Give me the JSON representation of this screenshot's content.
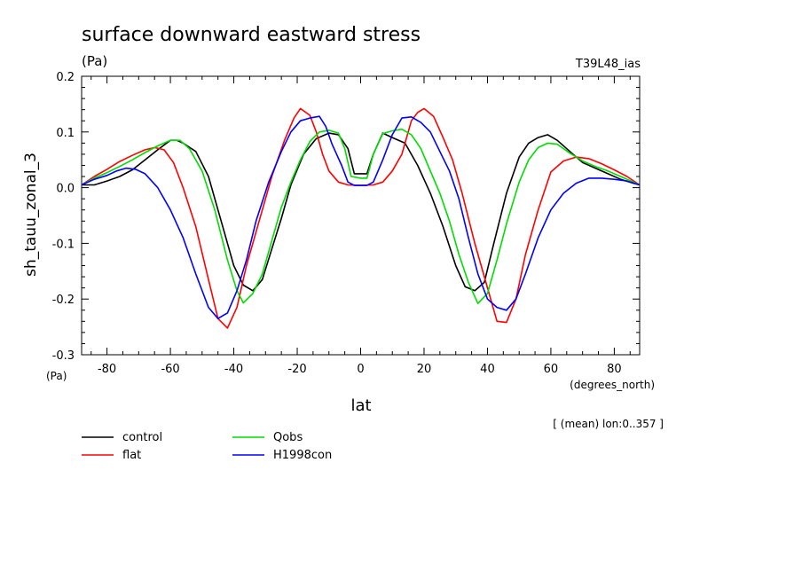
{
  "chart_data": {
    "type": "line",
    "title": "surface downward eastward stress",
    "subtitle_units": "(Pa)",
    "run_label": "T39L48_ias",
    "ylabel": "sh_tauu_zonal_3",
    "ylabel_units": "(Pa)",
    "xlabel": "lat",
    "xlabel_units": "(degrees_north)",
    "averaging_note": "[ (mean) lon:0..357 ]",
    "xlim": [
      -88,
      88
    ],
    "ylim": [
      -0.3,
      0.2
    ],
    "x_ticks": [
      -80,
      -60,
      -40,
      -20,
      0,
      20,
      40,
      60,
      80
    ],
    "y_ticks": [
      -0.3,
      -0.2,
      -0.1,
      0.0,
      0.1,
      0.2
    ],
    "grid": false,
    "legend_position": "bottom-left",
    "series": [
      {
        "name": "control",
        "color": "#000000",
        "points": [
          [
            -88,
            0.005
          ],
          [
            -84,
            0.005
          ],
          [
            -80,
            0.012
          ],
          [
            -76,
            0.02
          ],
          [
            -72,
            0.032
          ],
          [
            -68,
            0.05
          ],
          [
            -64,
            0.068
          ],
          [
            -60,
            0.085
          ],
          [
            -58,
            0.085
          ],
          [
            -56,
            0.08
          ],
          [
            -52,
            0.065
          ],
          [
            -48,
            0.02
          ],
          [
            -44,
            -0.06
          ],
          [
            -40,
            -0.14
          ],
          [
            -37,
            -0.175
          ],
          [
            -34,
            -0.185
          ],
          [
            -31,
            -0.165
          ],
          [
            -28,
            -0.11
          ],
          [
            -25,
            -0.055
          ],
          [
            -22,
            0.005
          ],
          [
            -18,
            0.06
          ],
          [
            -14,
            0.088
          ],
          [
            -10,
            0.098
          ],
          [
            -7,
            0.095
          ],
          [
            -4,
            0.07
          ],
          [
            -2,
            0.025
          ],
          [
            0,
            0.025
          ],
          [
            2,
            0.025
          ],
          [
            4,
            0.06
          ],
          [
            7,
            0.098
          ],
          [
            10,
            0.09
          ],
          [
            14,
            0.08
          ],
          [
            18,
            0.04
          ],
          [
            22,
            -0.01
          ],
          [
            26,
            -0.07
          ],
          [
            30,
            -0.14
          ],
          [
            33,
            -0.178
          ],
          [
            36,
            -0.185
          ],
          [
            39,
            -0.17
          ],
          [
            42,
            -0.1
          ],
          [
            46,
            -0.01
          ],
          [
            50,
            0.055
          ],
          [
            53,
            0.08
          ],
          [
            56,
            0.09
          ],
          [
            59,
            0.095
          ],
          [
            62,
            0.085
          ],
          [
            66,
            0.065
          ],
          [
            70,
            0.045
          ],
          [
            74,
            0.035
          ],
          [
            78,
            0.025
          ],
          [
            82,
            0.015
          ],
          [
            86,
            0.008
          ],
          [
            88,
            0.005
          ]
        ]
      },
      {
        "name": "flat",
        "color": "#ff0000",
        "points": [
          [
            -88,
            0.005
          ],
          [
            -84,
            0.02
          ],
          [
            -80,
            0.033
          ],
          [
            -76,
            0.047
          ],
          [
            -72,
            0.058
          ],
          [
            -68,
            0.068
          ],
          [
            -65,
            0.072
          ],
          [
            -62,
            0.068
          ],
          [
            -59,
            0.045
          ],
          [
            -56,
            0.0
          ],
          [
            -52,
            -0.07
          ],
          [
            -48,
            -0.165
          ],
          [
            -45,
            -0.235
          ],
          [
            -42,
            -0.252
          ],
          [
            -39,
            -0.215
          ],
          [
            -36,
            -0.14
          ],
          [
            -32,
            -0.06
          ],
          [
            -28,
            0.02
          ],
          [
            -24,
            0.085
          ],
          [
            -21,
            0.125
          ],
          [
            -19,
            0.142
          ],
          [
            -16,
            0.13
          ],
          [
            -14,
            0.1
          ],
          [
            -12,
            0.06
          ],
          [
            -10,
            0.03
          ],
          [
            -7,
            0.01
          ],
          [
            -4,
            0.005
          ],
          [
            0,
            0.004
          ],
          [
            4,
            0.005
          ],
          [
            7,
            0.01
          ],
          [
            10,
            0.03
          ],
          [
            13,
            0.06
          ],
          [
            16,
            0.12
          ],
          [
            18,
            0.135
          ],
          [
            20,
            0.142
          ],
          [
            23,
            0.128
          ],
          [
            26,
            0.09
          ],
          [
            29,
            0.05
          ],
          [
            32,
            -0.01
          ],
          [
            36,
            -0.1
          ],
          [
            40,
            -0.18
          ],
          [
            43,
            -0.24
          ],
          [
            46,
            -0.242
          ],
          [
            49,
            -0.2
          ],
          [
            52,
            -0.12
          ],
          [
            56,
            -0.04
          ],
          [
            60,
            0.028
          ],
          [
            64,
            0.048
          ],
          [
            68,
            0.055
          ],
          [
            72,
            0.052
          ],
          [
            76,
            0.043
          ],
          [
            80,
            0.032
          ],
          [
            84,
            0.02
          ],
          [
            88,
            0.005
          ]
        ]
      },
      {
        "name": "Qobs",
        "color": "#00dd00",
        "points": [
          [
            -88,
            0.005
          ],
          [
            -84,
            0.017
          ],
          [
            -80,
            0.027
          ],
          [
            -76,
            0.038
          ],
          [
            -72,
            0.05
          ],
          [
            -68,
            0.063
          ],
          [
            -64,
            0.075
          ],
          [
            -60,
            0.085
          ],
          [
            -57,
            0.085
          ],
          [
            -54,
            0.07
          ],
          [
            -50,
            0.03
          ],
          [
            -46,
            -0.04
          ],
          [
            -42,
            -0.13
          ],
          [
            -39,
            -0.185
          ],
          [
            -37,
            -0.207
          ],
          [
            -34,
            -0.19
          ],
          [
            -31,
            -0.155
          ],
          [
            -28,
            -0.095
          ],
          [
            -25,
            -0.035
          ],
          [
            -22,
            0.01
          ],
          [
            -19,
            0.05
          ],
          [
            -16,
            0.083
          ],
          [
            -13,
            0.1
          ],
          [
            -10,
            0.103
          ],
          [
            -7,
            0.098
          ],
          [
            -5,
            0.07
          ],
          [
            -3,
            0.02
          ],
          [
            0,
            0.017
          ],
          [
            2,
            0.017
          ],
          [
            4,
            0.06
          ],
          [
            7,
            0.097
          ],
          [
            10,
            0.102
          ],
          [
            13,
            0.105
          ],
          [
            16,
            0.095
          ],
          [
            19,
            0.07
          ],
          [
            22,
            0.03
          ],
          [
            25,
            -0.01
          ],
          [
            28,
            -0.06
          ],
          [
            31,
            -0.12
          ],
          [
            34,
            -0.17
          ],
          [
            37,
            -0.208
          ],
          [
            40,
            -0.19
          ],
          [
            43,
            -0.13
          ],
          [
            46,
            -0.065
          ],
          [
            50,
            0.01
          ],
          [
            53,
            0.05
          ],
          [
            56,
            0.072
          ],
          [
            59,
            0.08
          ],
          [
            62,
            0.078
          ],
          [
            66,
            0.062
          ],
          [
            70,
            0.048
          ],
          [
            74,
            0.038
          ],
          [
            78,
            0.03
          ],
          [
            82,
            0.02
          ],
          [
            86,
            0.01
          ],
          [
            88,
            0.005
          ]
        ]
      },
      {
        "name": "H1998con",
        "color": "#0000ff",
        "points": [
          [
            -88,
            0.005
          ],
          [
            -84,
            0.015
          ],
          [
            -80,
            0.022
          ],
          [
            -77,
            0.03
          ],
          [
            -74,
            0.035
          ],
          [
            -71,
            0.033
          ],
          [
            -68,
            0.025
          ],
          [
            -64,
            0.0
          ],
          [
            -60,
            -0.04
          ],
          [
            -56,
            -0.09
          ],
          [
            -52,
            -0.155
          ],
          [
            -48,
            -0.215
          ],
          [
            -45,
            -0.235
          ],
          [
            -42,
            -0.225
          ],
          [
            -39,
            -0.185
          ],
          [
            -36,
            -0.13
          ],
          [
            -33,
            -0.06
          ],
          [
            -29,
            0.01
          ],
          [
            -25,
            0.065
          ],
          [
            -22,
            0.1
          ],
          [
            -19,
            0.12
          ],
          [
            -16,
            0.125
          ],
          [
            -13,
            0.128
          ],
          [
            -11,
            0.11
          ],
          [
            -9,
            0.078
          ],
          [
            -6,
            0.04
          ],
          [
            -4,
            0.01
          ],
          [
            -2,
            0.004
          ],
          [
            0,
            0.004
          ],
          [
            2,
            0.004
          ],
          [
            4,
            0.01
          ],
          [
            7,
            0.05
          ],
          [
            10,
            0.095
          ],
          [
            13,
            0.125
          ],
          [
            16,
            0.127
          ],
          [
            19,
            0.117
          ],
          [
            22,
            0.1
          ],
          [
            25,
            0.065
          ],
          [
            28,
            0.03
          ],
          [
            31,
            -0.02
          ],
          [
            34,
            -0.09
          ],
          [
            37,
            -0.155
          ],
          [
            40,
            -0.2
          ],
          [
            43,
            -0.215
          ],
          [
            46,
            -0.22
          ],
          [
            49,
            -0.2
          ],
          [
            52,
            -0.155
          ],
          [
            56,
            -0.09
          ],
          [
            60,
            -0.04
          ],
          [
            64,
            -0.01
          ],
          [
            68,
            0.008
          ],
          [
            72,
            0.017
          ],
          [
            76,
            0.017
          ],
          [
            80,
            0.015
          ],
          [
            84,
            0.012
          ],
          [
            88,
            0.005
          ]
        ]
      }
    ]
  }
}
